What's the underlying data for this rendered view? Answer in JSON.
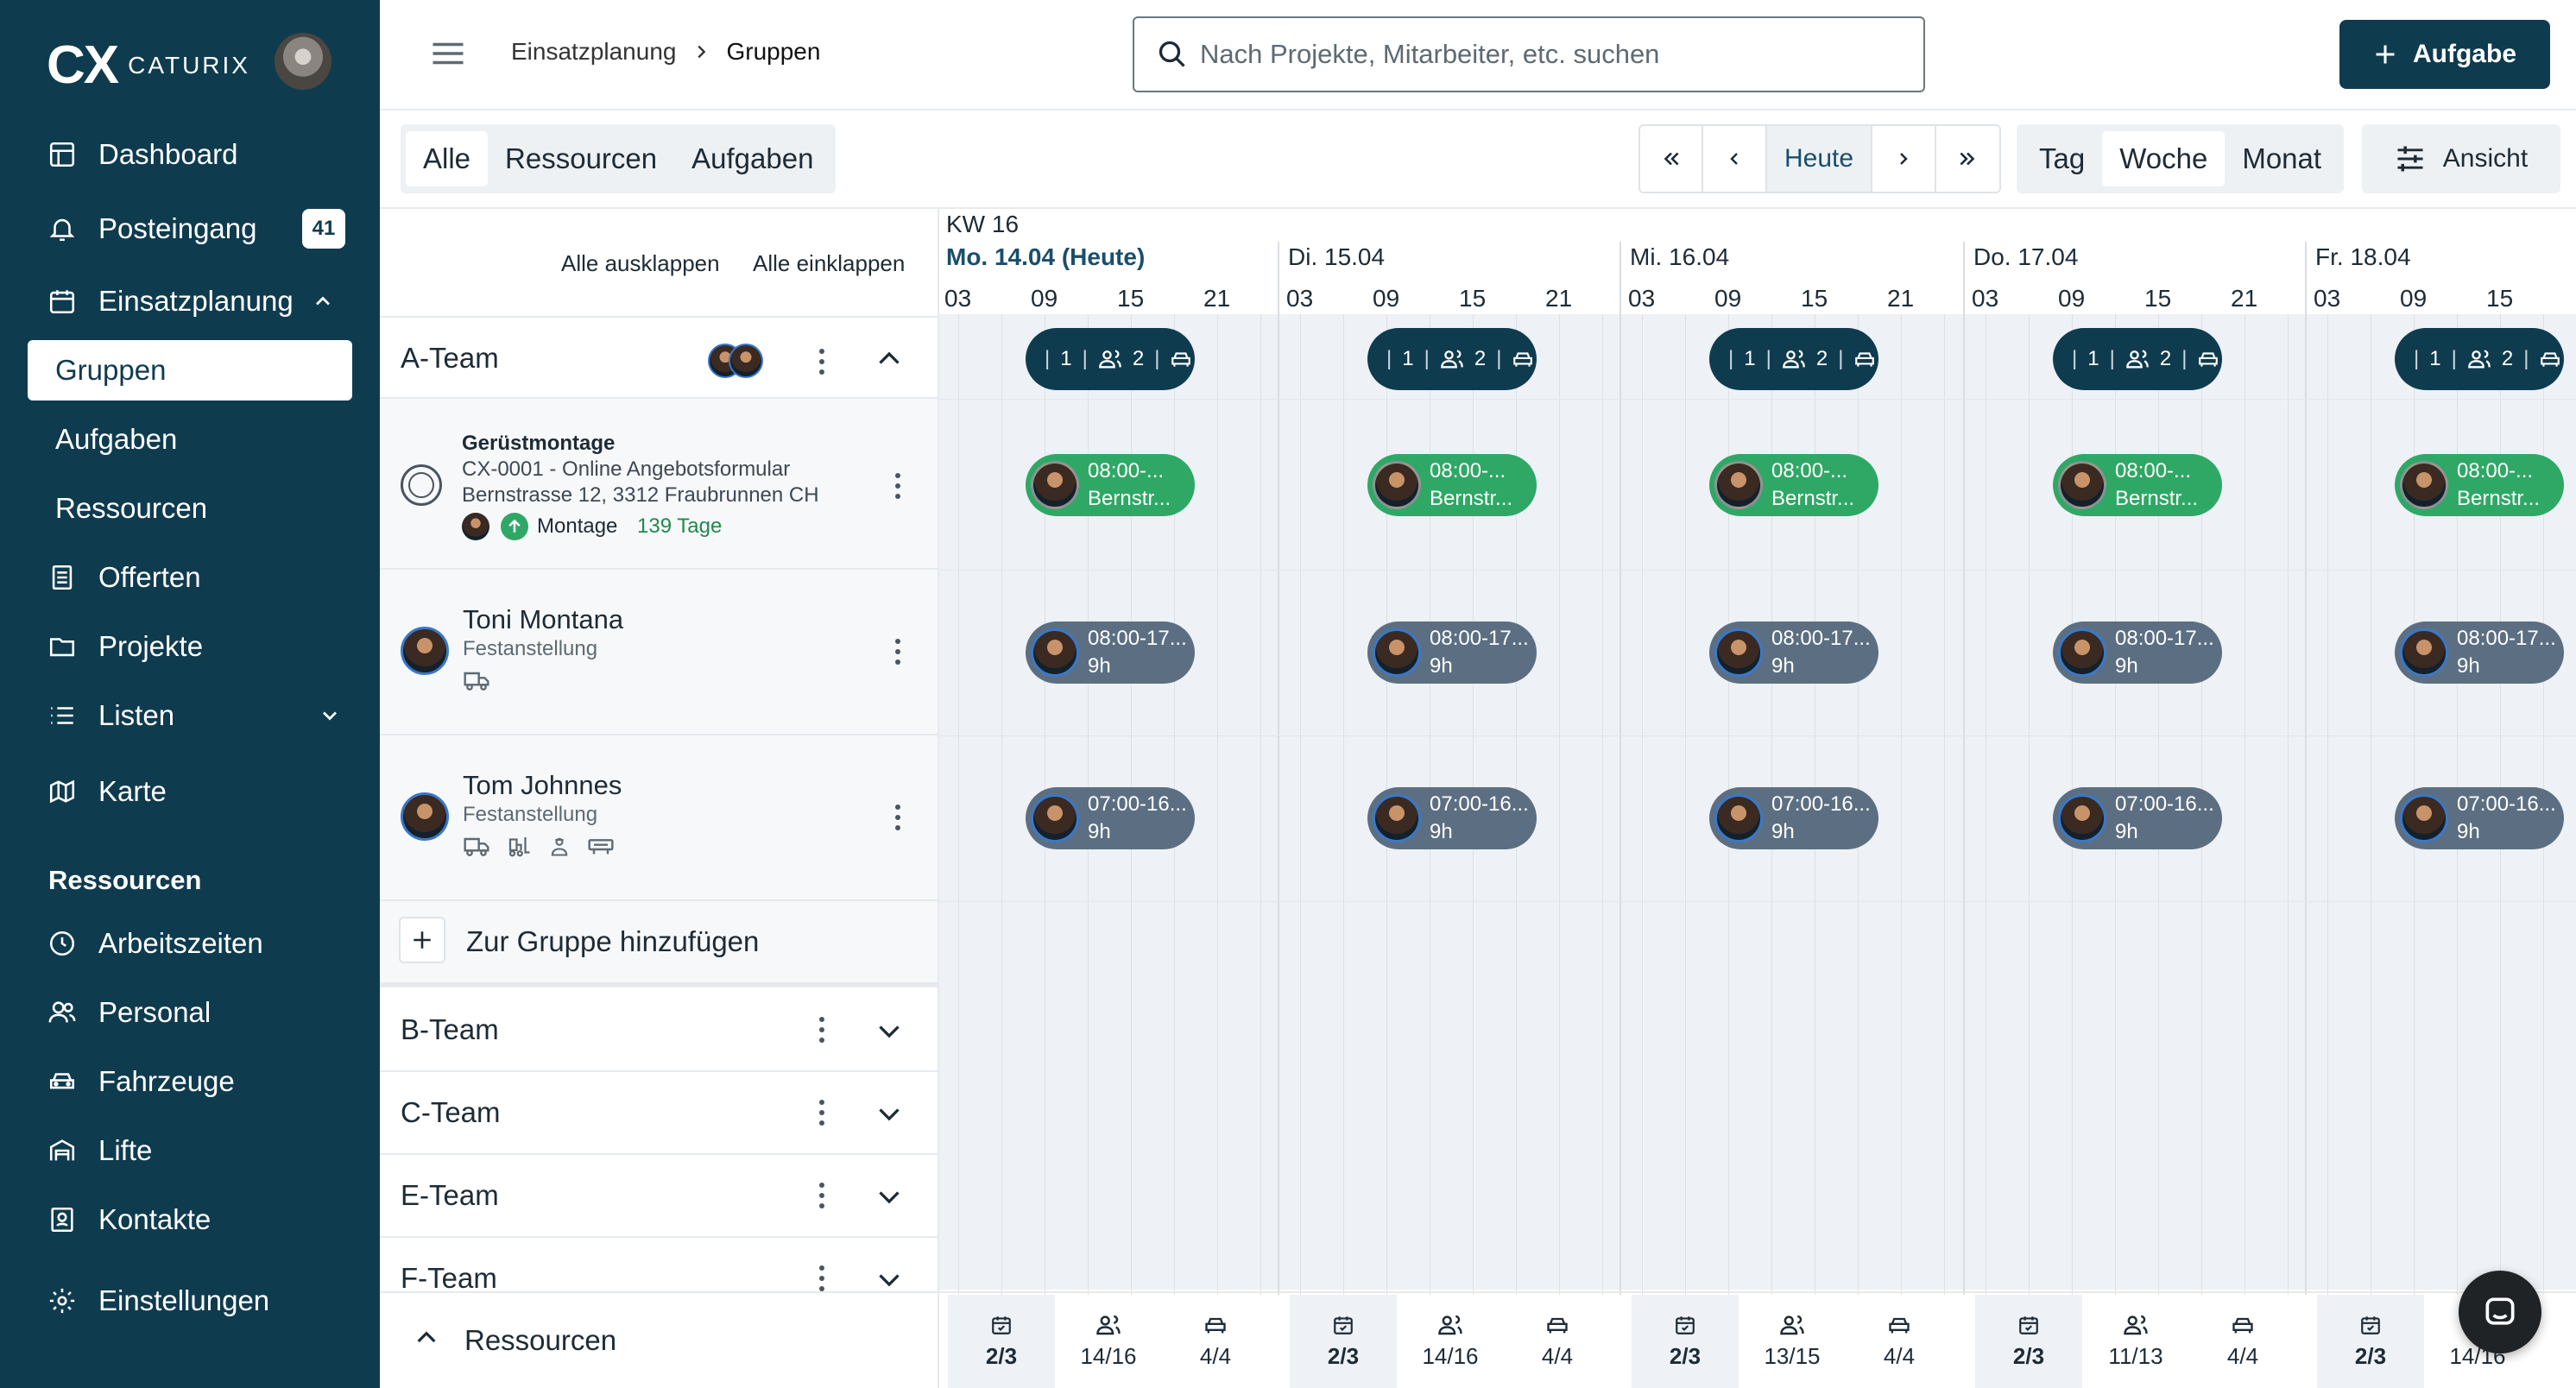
{
  "brand": {
    "logo_mark": "CX",
    "logo_text": "CATURIX"
  },
  "sidebar": {
    "items": [
      {
        "label": "Dashboard",
        "icon": "dashboard-icon"
      },
      {
        "label": "Posteingang",
        "icon": "bell-icon",
        "badge": "41"
      },
      {
        "label": "Einsatzplanung",
        "icon": "calendar-icon"
      },
      {
        "label": "Gruppen"
      },
      {
        "label": "Aufgaben"
      },
      {
        "label": "Ressourcen"
      },
      {
        "label": "Offerten",
        "icon": "document-icon"
      },
      {
        "label": "Projekte",
        "icon": "folder-icon"
      },
      {
        "label": "Listen",
        "icon": "list-icon"
      },
      {
        "label": "Karte",
        "icon": "map-icon"
      }
    ],
    "section_title": "Ressourcen",
    "resource_items": [
      {
        "label": "Arbeitszeiten",
        "icon": "clock-icon"
      },
      {
        "label": "Personal",
        "icon": "people-icon"
      },
      {
        "label": "Fahrzeuge",
        "icon": "car-icon"
      },
      {
        "label": "Lifte",
        "icon": "lift-icon"
      },
      {
        "label": "Kontakte",
        "icon": "contacts-icon"
      }
    ],
    "settings": {
      "label": "Einstellungen",
      "icon": "gear-icon"
    }
  },
  "header": {
    "breadcrumb": [
      "Einsatzplanung",
      "Gruppen"
    ],
    "search_placeholder": "Nach Projekte, Mitarbeiter, etc. suchen",
    "add_label": "Aufgabe"
  },
  "toolbar": {
    "filter_tabs": [
      "Alle",
      "Ressourcen",
      "Aufgaben"
    ],
    "today_label": "Heute",
    "view_modes": [
      "Tag",
      "Woche",
      "Monat"
    ],
    "ansicht_label": "Ansicht",
    "expand_all": "Alle ausklappen",
    "collapse_all": "Alle einklappen"
  },
  "calendar": {
    "week_label": "KW 16",
    "days": [
      {
        "label": "Mo. 14.04 (Heute)",
        "today": true
      },
      {
        "label": "Di. 15.04"
      },
      {
        "label": "Mi. 16.04"
      },
      {
        "label": "Do. 17.04"
      },
      {
        "label": "Fr. 18.04"
      }
    ],
    "hours": [
      "03",
      "09",
      "15",
      "21"
    ]
  },
  "groups": {
    "open": {
      "name": "A-Team"
    },
    "task": {
      "title": "Gerüstmontage",
      "line1": "CX-0001 - Online Angebotsformular",
      "line2": "Bernstrasse 12, 3312 Fraubrunnen CH",
      "type": "Montage",
      "duration": "139 Tage"
    },
    "people": [
      {
        "name": "Toni Montana",
        "role": "Festanstellung"
      },
      {
        "name": "Tom Johnnes",
        "role": "Festanstellung"
      }
    ],
    "add_label": "Zur Gruppe hinzufügen",
    "collapsed": [
      "B-Team",
      "C-Team",
      "E-Team",
      "F-Team"
    ],
    "resources_label": "Ressourcen"
  },
  "summary_pill": {
    "a": "1",
    "b": "2"
  },
  "task_pill": {
    "time": "08:00-...",
    "place": "Bernstr..."
  },
  "toni_pill": {
    "time": "08:00-17...",
    "hours": "9h"
  },
  "tom_pill": {
    "time": "07:00-16...",
    "hours": "9h"
  },
  "footer_stats": [
    [
      "2/3",
      "14/16",
      "4/4"
    ],
    [
      "2/3",
      "14/16",
      "4/4"
    ],
    [
      "2/3",
      "13/15",
      "4/4"
    ],
    [
      "2/3",
      "11/13",
      "4/4"
    ],
    [
      "2/3",
      "14/16"
    ]
  ],
  "colors": {
    "brand": "#0f3b4f",
    "green": "#2fa866",
    "gray_pill": "#5c6f82",
    "today": "#1a4e6c"
  }
}
